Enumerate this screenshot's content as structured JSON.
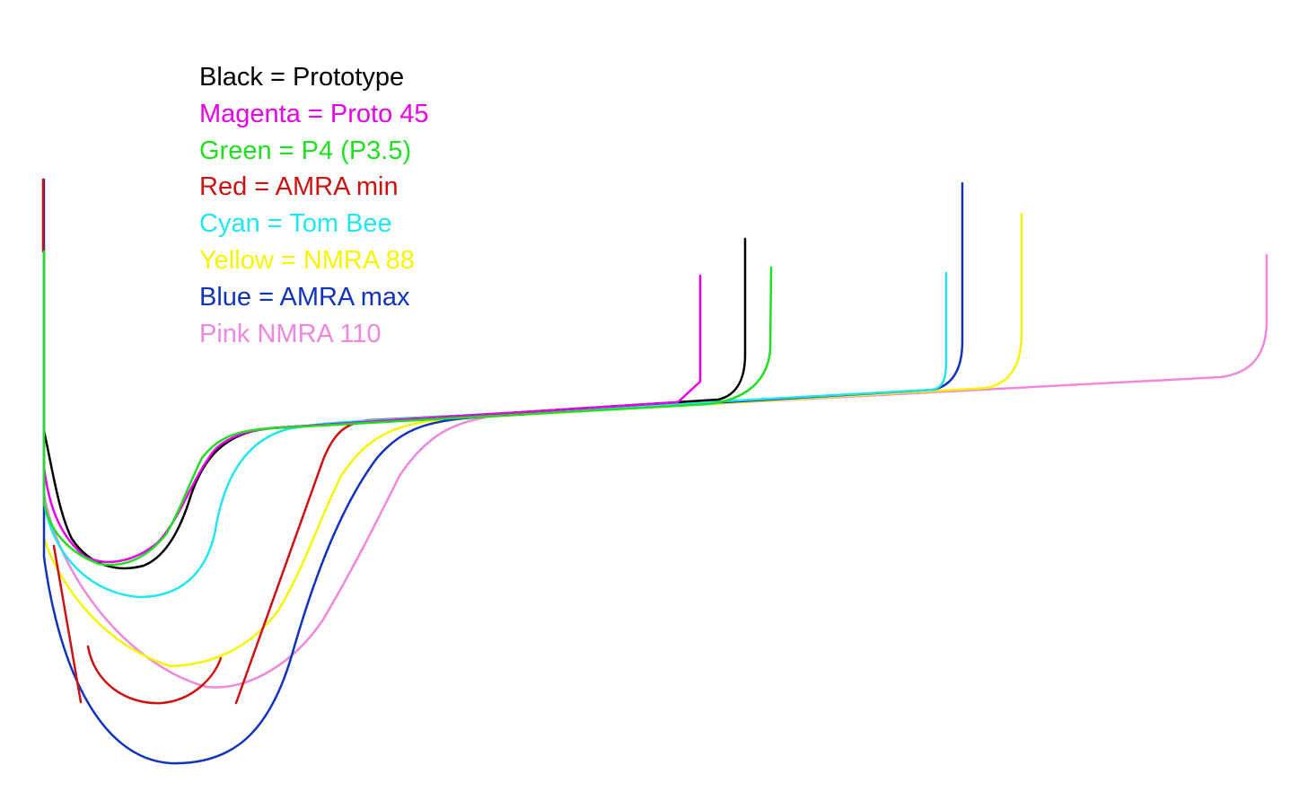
{
  "legend": [
    {
      "key": "black",
      "text": "Black = Prototype",
      "color": "#000000"
    },
    {
      "key": "magenta",
      "text": "Magenta = Proto 45",
      "color": "#e600e6"
    },
    {
      "key": "green",
      "text": "Green = P4 (P3.5)",
      "color": "#22dd22"
    },
    {
      "key": "red",
      "text": "Red = AMRA min",
      "color": "#cc1111"
    },
    {
      "key": "cyan",
      "text": "Cyan = Tom Bee",
      "color": "#22e5ee"
    },
    {
      "key": "yellow",
      "text": "Yellow = NMRA 88",
      "color": "#f5f500"
    },
    {
      "key": "blue",
      "text": "Blue = AMRA max",
      "color": "#1133bb"
    },
    {
      "key": "pink",
      "text": "Pink NMRA 110",
      "color": "#ee88dd"
    }
  ]
}
